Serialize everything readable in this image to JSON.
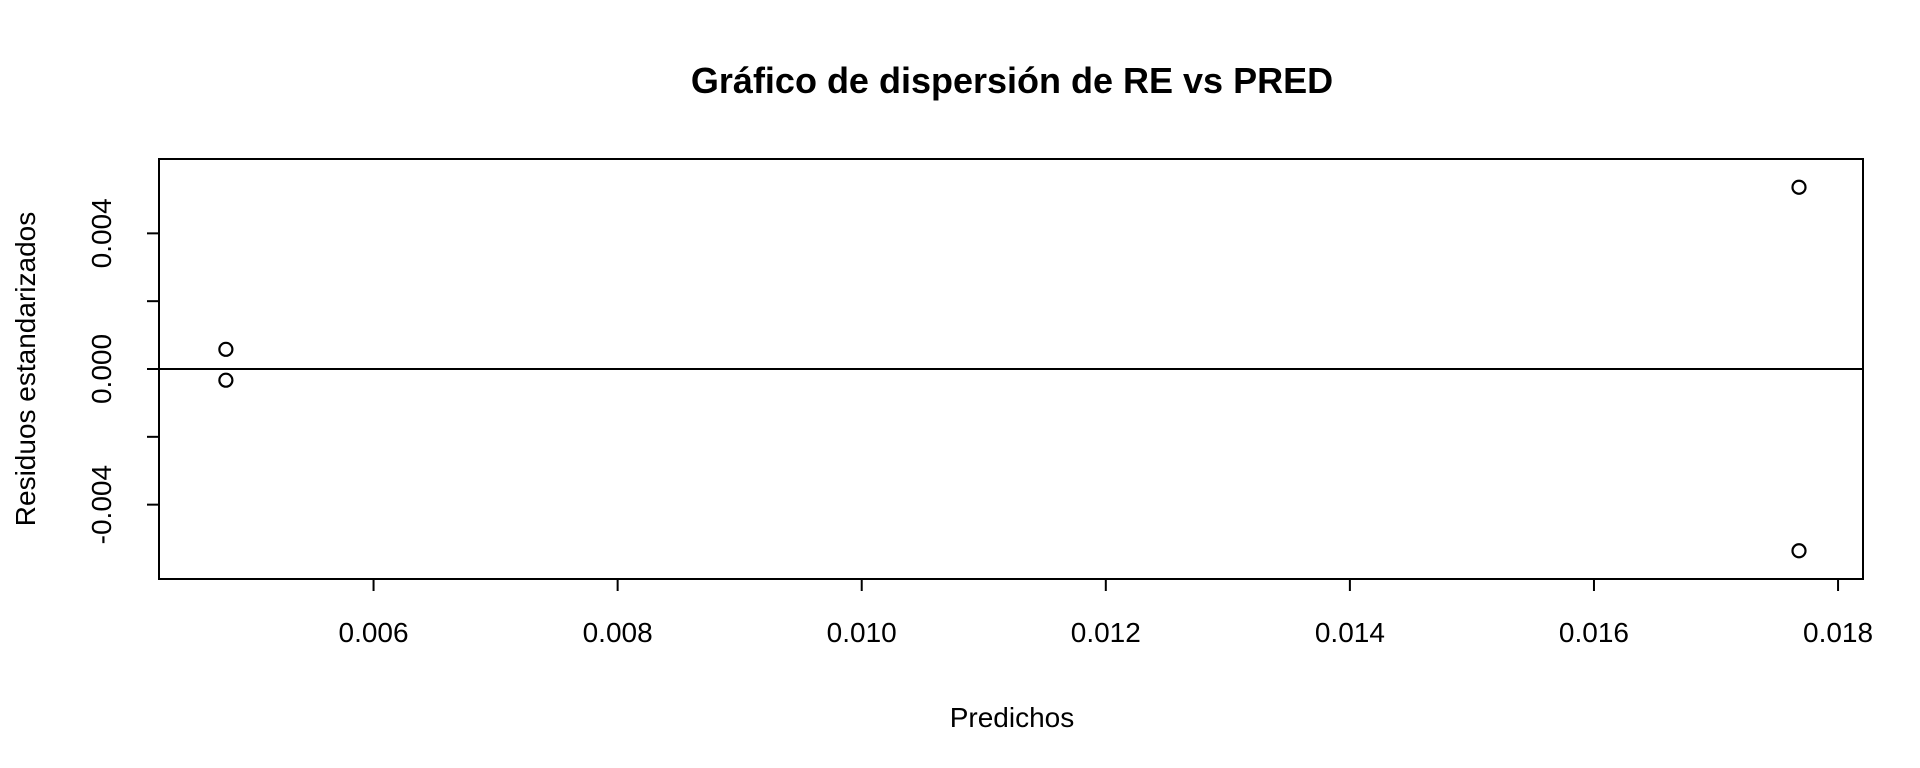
{
  "chart_data": {
    "type": "scatter",
    "title": "Gráfico de dispersión de RE vs PRED",
    "xlabel": "Predichos",
    "ylabel": "Residuos estandarizados",
    "xlim": [
      0.00475,
      0.01768
    ],
    "ylim": [
      -0.00575,
      0.00575
    ],
    "x_ticks": [
      0.006,
      0.008,
      0.01,
      0.012,
      0.014,
      0.016,
      0.018
    ],
    "x_tick_labels": [
      "0.006",
      "0.008",
      "0.010",
      "0.012",
      "0.014",
      "0.016",
      "0.018"
    ],
    "y_ticks": [
      -0.004,
      -0.002,
      0.0,
      0.002,
      0.004
    ],
    "y_tick_labels": [
      "-0.004",
      "",
      "0.000",
      "",
      "0.004"
    ],
    "points": [
      {
        "x": 0.00479,
        "y": 0.00058
      },
      {
        "x": 0.00479,
        "y": -0.00033
      },
      {
        "x": 0.01768,
        "y": 0.00536
      },
      {
        "x": 0.01768,
        "y": -0.00536
      }
    ],
    "reference_line_y": 0,
    "grid": false,
    "marker": "open-circle",
    "color": "#000000"
  }
}
